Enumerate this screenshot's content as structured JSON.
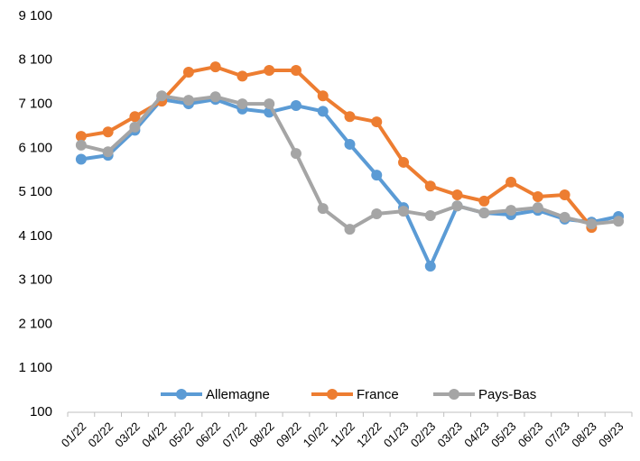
{
  "chart_data": {
    "type": "line",
    "categories": [
      "01/22",
      "02/22",
      "03/22",
      "04/22",
      "05/22",
      "06/22",
      "07/22",
      "08/22",
      "09/22",
      "10/22",
      "11/22",
      "12/22",
      "01/23",
      "02/23",
      "03/23",
      "04/23",
      "05/23",
      "06/23",
      "07/23",
      "08/23",
      "09/23"
    ],
    "series": [
      {
        "name": "Allemagne",
        "color": "#5b9bd5",
        "values": [
          5850,
          5940,
          6510,
          7210,
          7110,
          7210,
          6990,
          6920,
          7070,
          6940,
          6190,
          5490,
          4750,
          3420,
          4790,
          4630,
          4590,
          4690,
          4490,
          4420,
          4550
        ]
      },
      {
        "name": "France",
        "color": "#ed7d31",
        "values": [
          6370,
          6470,
          6820,
          7170,
          7830,
          7950,
          7740,
          7870,
          7870,
          7290,
          6820,
          6700,
          5780,
          5240,
          5040,
          4900,
          5330,
          5000,
          5040,
          4300,
          null
        ]
      },
      {
        "name": "Pays-Bas",
        "color": "#a5a5a5",
        "values": [
          6170,
          6020,
          6580,
          7290,
          7190,
          7270,
          7110,
          7110,
          5980,
          4730,
          4260,
          4610,
          4670,
          4570,
          4790,
          4630,
          4690,
          4750,
          4530,
          4380,
          4440
        ]
      }
    ],
    "ylim": [
      100,
      9100
    ],
    "yticks": [
      {
        "value": 100,
        "label": "100"
      },
      {
        "value": 1100,
        "label": "1 100"
      },
      {
        "value": 2100,
        "label": "2 100"
      },
      {
        "value": 3100,
        "label": "3 100"
      },
      {
        "value": 4100,
        "label": "4 100"
      },
      {
        "value": 5100,
        "label": "5 100"
      },
      {
        "value": 6100,
        "label": "6 100"
      },
      {
        "value": 7100,
        "label": "7 100"
      },
      {
        "value": 8100,
        "label": "8 100"
      },
      {
        "value": 9100,
        "label": "9 100"
      }
    ],
    "grid": false,
    "legend": "bottom"
  }
}
